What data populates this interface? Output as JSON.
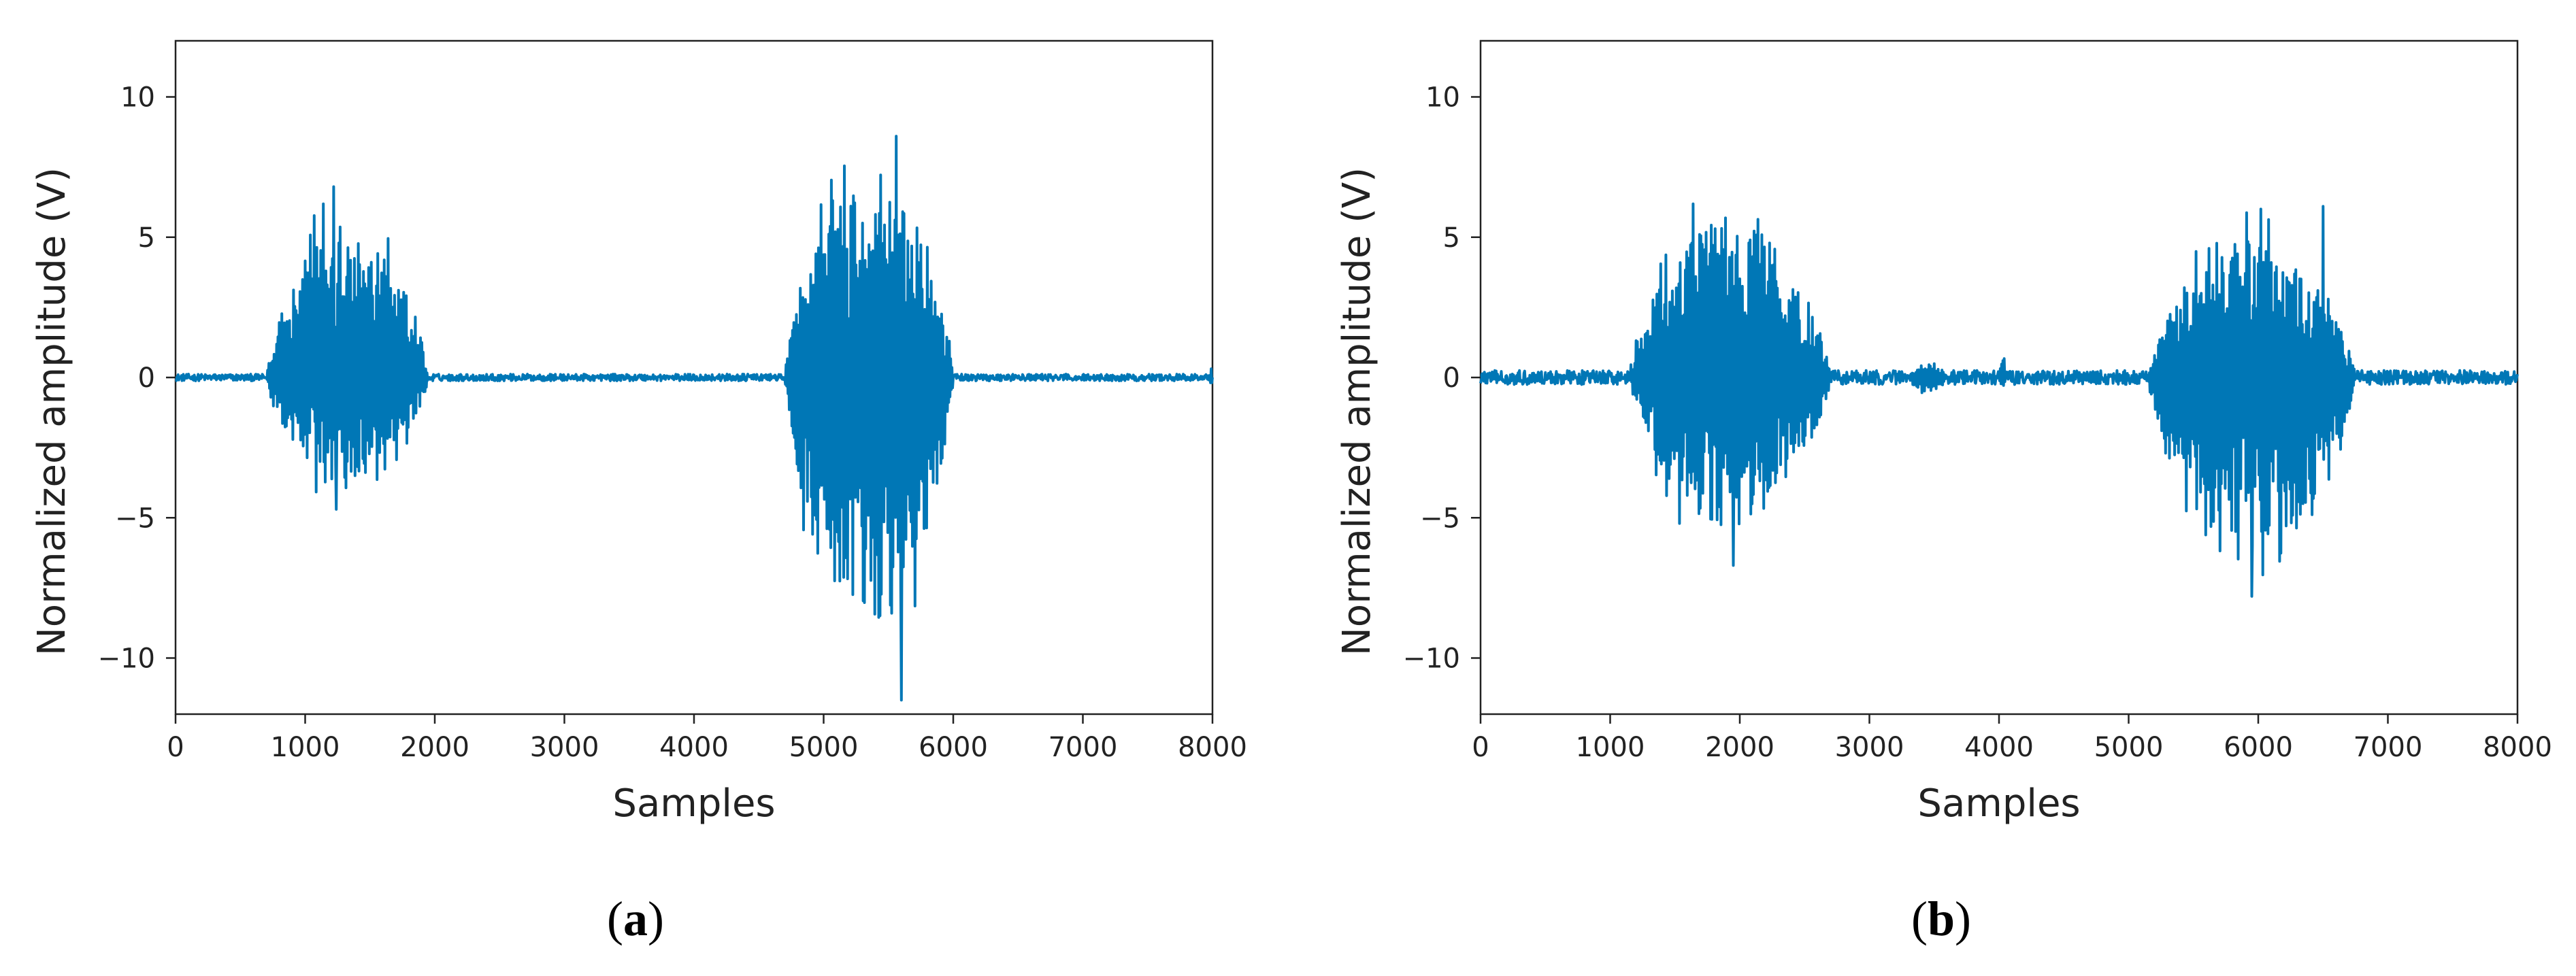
{
  "figure": {
    "series_color": "#0077B6"
  },
  "chart_data": [
    {
      "panel": "a",
      "caption": {
        "open": "(",
        "letter": "a",
        "close": ")"
      },
      "type": "line",
      "title": "",
      "xlabel": "Samples",
      "ylabel": "Normalized amplitude (V)",
      "xlim": [
        0,
        8000
      ],
      "ylim": [
        -12,
        12
      ],
      "xticks": [
        0,
        1000,
        2000,
        3000,
        4000,
        5000,
        6000,
        7000,
        8000
      ],
      "yticks": [
        -10,
        -5,
        0,
        5,
        10
      ],
      "ytick_labels": [
        "−10",
        "−5",
        "0",
        "5",
        "10"
      ],
      "grid": false,
      "legend": "none",
      "noise_floor": 0.12,
      "bursts": [
        {
          "start": 700,
          "end": 1950,
          "peak_sample": 1350,
          "max": 6.8,
          "min": -4.7
        },
        {
          "start": 4700,
          "end": 6000,
          "peak_sample": 5500,
          "max": 8.6,
          "min": -11.5
        },
        {
          "start": 7980,
          "end": 8000,
          "peak_sample": 7995,
          "max": 0.4,
          "min": -0.4
        }
      ],
      "notable_extremes": [
        {
          "x": 1220,
          "y": 6.8
        },
        {
          "x": 1240,
          "y": -4.7
        },
        {
          "x": 5560,
          "y": 8.6
        },
        {
          "x": 5600,
          "y": -11.5
        }
      ]
    },
    {
      "panel": "b",
      "caption": {
        "open": "(",
        "letter": "b",
        "close": ")"
      },
      "type": "line",
      "title": "",
      "xlabel": "Samples",
      "ylabel": "Normalized amplitude (V)",
      "xlim": [
        0,
        8000
      ],
      "ylim": [
        -12,
        12
      ],
      "xticks": [
        0,
        1000,
        2000,
        3000,
        4000,
        5000,
        6000,
        7000,
        8000
      ],
      "yticks": [
        -10,
        -5,
        0,
        5,
        10
      ],
      "ytick_labels": [
        "−10",
        "−5",
        "0",
        "5",
        "10"
      ],
      "grid": false,
      "legend": "none",
      "noise_floor": 0.25,
      "bursts": [
        {
          "start": 1150,
          "end": 2700,
          "peak_sample": 1950,
          "max": 7.2,
          "min": -6.7
        },
        {
          "start": 3300,
          "end": 3600,
          "peak_sample": 3450,
          "max": 0.6,
          "min": -0.6
        },
        {
          "start": 4000,
          "end": 4050,
          "peak_sample": 4020,
          "max": 1.0,
          "min": -0.5
        },
        {
          "start": 5150,
          "end": 6750,
          "peak_sample": 6050,
          "max": 6.1,
          "min": -7.8
        }
      ],
      "notable_extremes": [
        {
          "x": 1950,
          "y": 7.2
        },
        {
          "x": 1950,
          "y": -6.7
        },
        {
          "x": 6500,
          "y": 6.1
        },
        {
          "x": 5950,
          "y": -7.8
        }
      ]
    }
  ]
}
